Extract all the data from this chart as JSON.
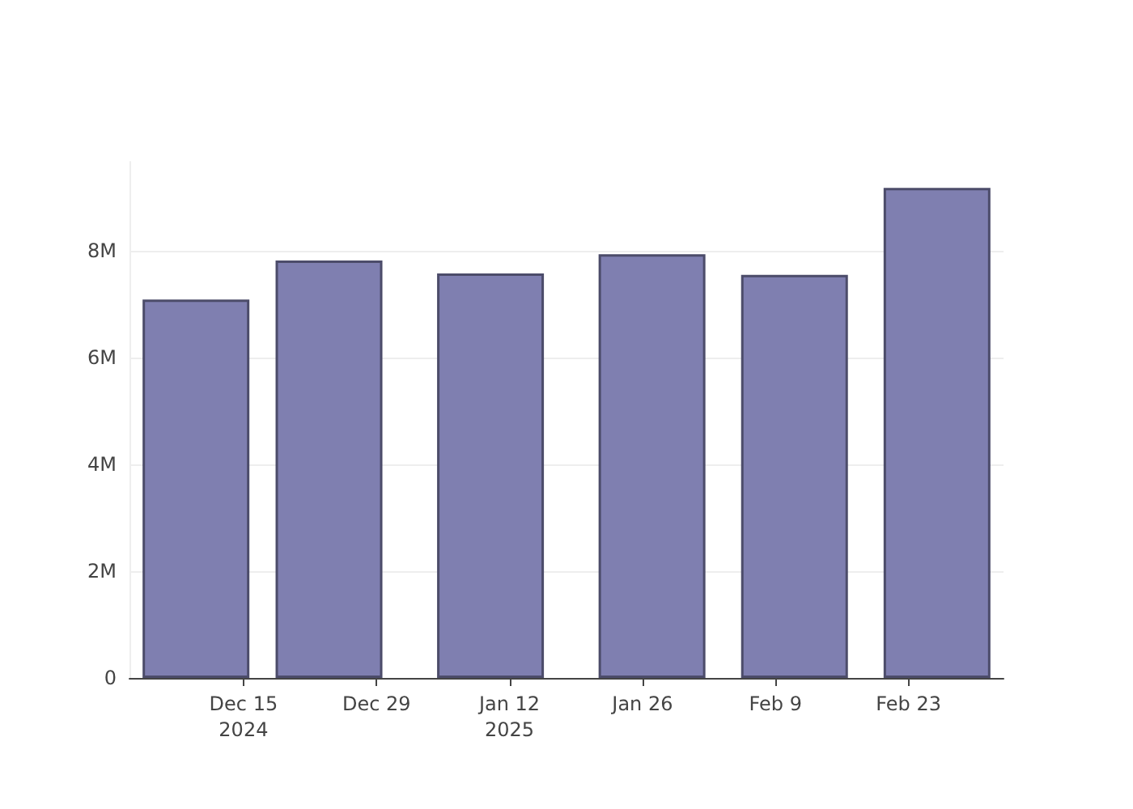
{
  "chart_data": {
    "type": "bar",
    "x": [
      "2024-12-10",
      "2024-12-24",
      "2025-01-10",
      "2025-01-27",
      "2025-02-11",
      "2025-02-26"
    ],
    "values": [
      7090000,
      7820000,
      7580000,
      7940000,
      7550000,
      9180000
    ],
    "color": "#7f7fb0",
    "xlim": [
      "2024-12-03",
      "2025-03-05"
    ],
    "xticks": [
      {
        "value": "2024-12-15",
        "label": "Dec 15\n2024"
      },
      {
        "value": "2024-12-29",
        "label": "Dec 29"
      },
      {
        "value": "2025-01-12",
        "label": "Jan 12\n2025"
      },
      {
        "value": "2025-01-26",
        "label": "Jan 26"
      },
      {
        "value": "2025-02-09",
        "label": "Feb 9"
      },
      {
        "value": "2025-02-23",
        "label": "Feb 23"
      }
    ],
    "ylim": [
      0,
      9670000
    ],
    "yticks": [
      0,
      {
        "value": 2000000,
        "label": "2M"
      },
      {
        "value": 4000000,
        "label": "4M"
      },
      {
        "value": 6000000,
        "label": "6M"
      },
      {
        "value": 8000000,
        "label": "8M"
      }
    ],
    "grid": "y"
  }
}
